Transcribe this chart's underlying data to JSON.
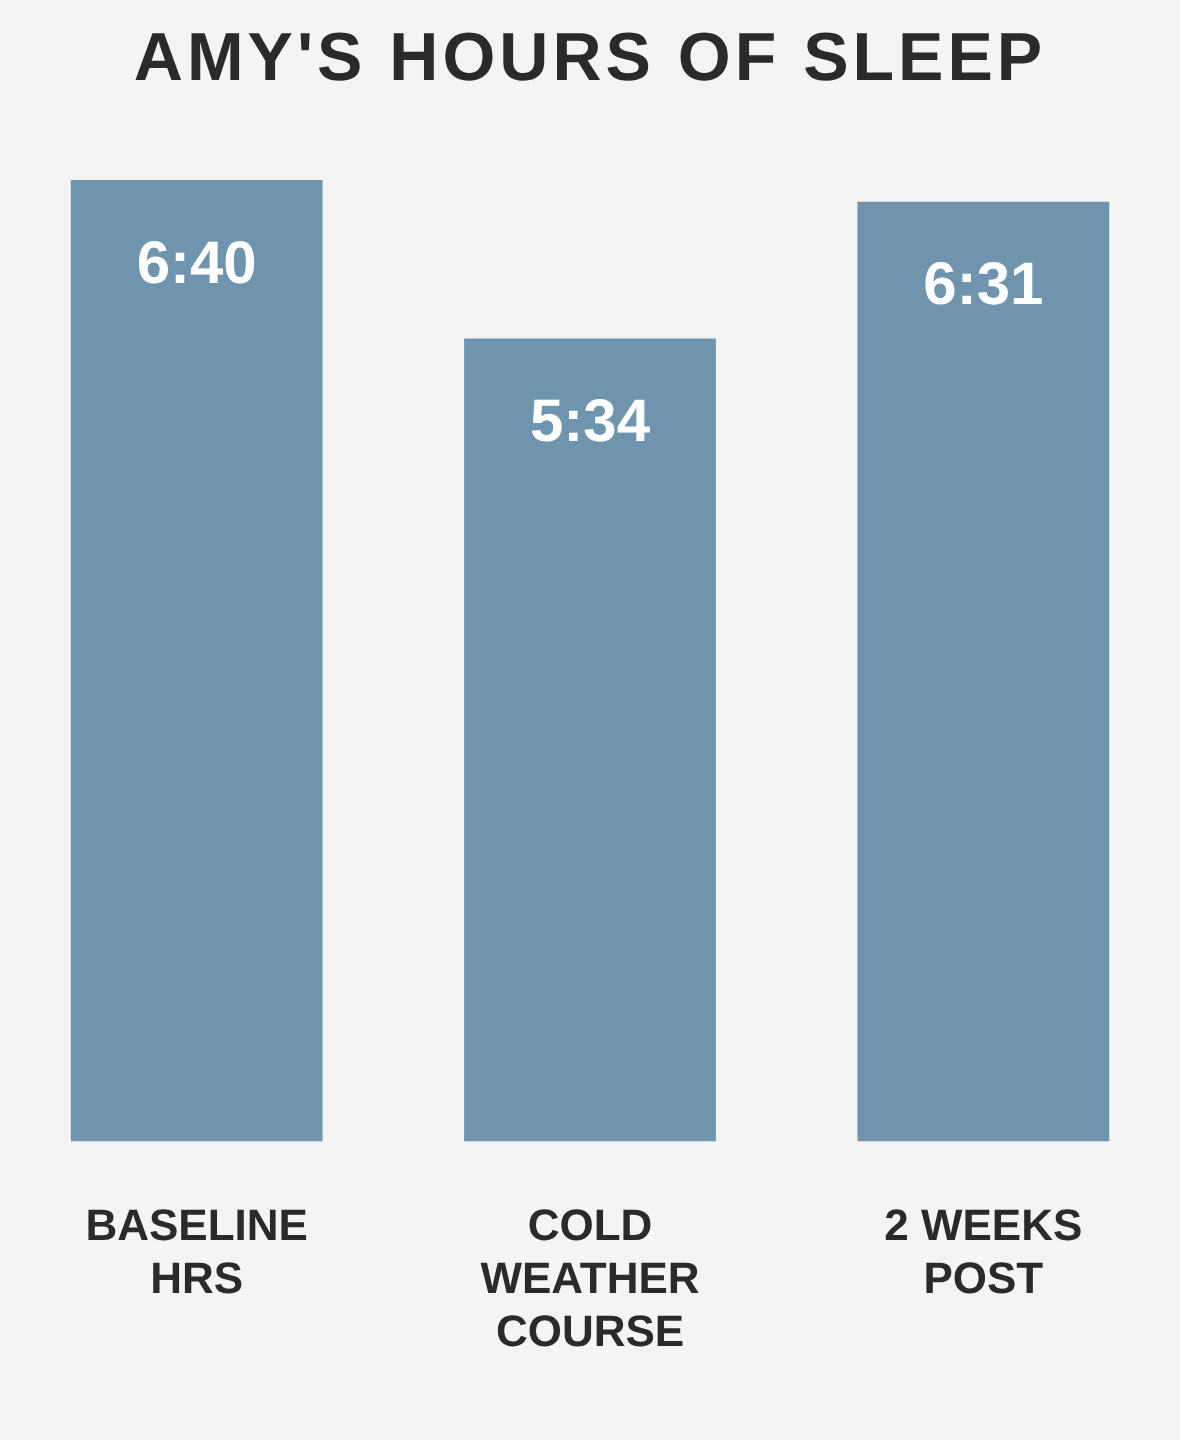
{
  "chart_data": {
    "type": "bar",
    "title": "AMY'S HOURS OF SLEEP",
    "categories": [
      "BASELINE HRS",
      "COLD WEATHER COURSE",
      "2 WEEKS POST"
    ],
    "values": [
      6.67,
      5.57,
      6.52
    ],
    "value_labels": [
      "6:40",
      "5:34",
      "6:31"
    ],
    "color": "#6f94ad",
    "grid": false,
    "legend": false
  }
}
